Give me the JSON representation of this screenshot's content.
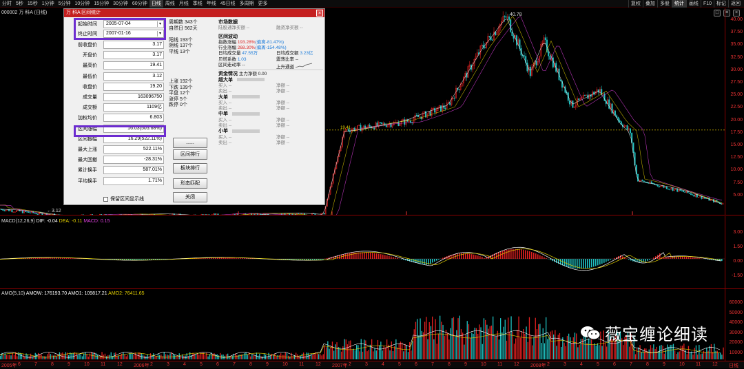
{
  "topbar": {
    "periods": [
      "分时",
      "5秒",
      "15秒",
      "1分钟",
      "5分钟",
      "10分钟",
      "15分钟",
      "30分钟",
      "60分钟",
      "日线",
      "周线",
      "月线",
      "季线",
      "年线",
      "45日线",
      "多周期",
      "更多"
    ],
    "active_period": "日线",
    "right_tools": [
      "复权",
      "叠加",
      "多股",
      "统计",
      "画线",
      "F10",
      "标记",
      "返回"
    ],
    "active_tool": "统计"
  },
  "stock": {
    "code": "000002",
    "name": "万 科A",
    "period": "(日线)"
  },
  "price_axis": [
    "40.00",
    "37.50",
    "35.00",
    "32.50",
    "30.00",
    "27.50",
    "25.00",
    "22.50",
    "20.00",
    "17.50",
    "15.00",
    "12.50",
    "10.00",
    "7.50",
    "5.00"
  ],
  "price_annotations": {
    "high": "40.78",
    "low": "3.12",
    "current": "19.41"
  },
  "macd": {
    "header": "MACD(12,26,9)",
    "dif": "DIF: -0.04",
    "dea": "DEA: -0.11",
    "macd": "MACD: 0.15",
    "axis": [
      "3.00",
      "1.50",
      "0.00",
      "-1.50"
    ]
  },
  "amo": {
    "header": "AMO(5,10)",
    "amow": "AMOW: 176193.70",
    "amo1": "AMO1: 109817.21",
    "amo2": "AMO2: 76411.65",
    "axis": [
      "60000",
      "50000",
      "40000",
      "30000",
      "20000",
      "10000"
    ]
  },
  "dialog": {
    "title": "万 科A  区间统计",
    "close": "×",
    "start_label": "起始时间",
    "start_value": "2005-07-04",
    "end_label": "终止时间",
    "end_value": "2007-01-16",
    "fields": [
      {
        "label": "前收盘价",
        "value": "3.17"
      },
      {
        "label": "开盘价",
        "value": "3.17"
      },
      {
        "label": "最高价",
        "value": "19.41"
      },
      {
        "label": "最低价",
        "value": "3.12"
      },
      {
        "label": "收盘价",
        "value": "19.20"
      },
      {
        "label": "成交量",
        "value": "163096750"
      },
      {
        "label": "成交额",
        "value": "1109亿"
      },
      {
        "label": "加权均价",
        "value": "6.803"
      },
      {
        "label": "区间涨幅",
        "value": "16.03(505.68%)"
      },
      {
        "label": "区间振幅",
        "value": "16.29(522.11%)"
      },
      {
        "label": "最大上涨",
        "value": "522.11%"
      },
      {
        "label": "最大回撤",
        "value": "-28.31%"
      },
      {
        "label": "累计换手",
        "value": "587.01%"
      },
      {
        "label": "平均换手",
        "value": "1.71%"
      }
    ],
    "mid_stats": [
      "周期数 343个",
      "自然日 562天",
      "",
      "阳线 193个",
      "阴线 137个",
      "平线 13个",
      "",
      "",
      "",
      "",
      "上涨 192个",
      "下跌 139个",
      "平盘 12个",
      "涨停 5个",
      "跌停 0个"
    ],
    "buttons": [
      "......",
      "区间排行",
      "板块排行",
      "形态匹配",
      "关闭"
    ],
    "checkbox_label": "保留区间显示线",
    "market": {
      "title": "市场数据",
      "north_in": "陆股通净买额 --",
      "margin_in": "融资净买额 --",
      "vol_title": "区间波动",
      "index_chg_lbl": "指数涨幅",
      "index_chg": "193.28%",
      "index_chg_note": "(偏离-81.47%)",
      "ind_chg_lbl": "行业涨幅",
      "ind_chg": "268.30%",
      "ind_chg_note": "(偏离-154.48%)",
      "daily_amt_lbl": "日均成交量",
      "daily_amt": "47.55万",
      "daily_turn_lbl": "日均成交额",
      "daily_turn": "3.23亿",
      "beta_lbl": "贝塔系数",
      "beta": "1.03",
      "amp_lbl": "震荡比率",
      "amp": "--",
      "trend_lbl": "区间走动率",
      "trend": "--",
      "channel": "上升通道",
      "fund_title": "资金情况",
      "fund_main": "主力净额 0.00",
      "groups": [
        "超大单",
        "大单",
        "中单",
        "小单"
      ],
      "buy": "买入 --",
      "sell": "卖出 --",
      "net": "净额 --"
    }
  },
  "time_axis": [
    "2005年",
    "6",
    "7",
    "8",
    "9",
    "10",
    "11",
    "12",
    "2006年",
    "2",
    "3",
    "4",
    "5",
    "6",
    "7",
    "8",
    "9",
    "10",
    "11",
    "12",
    "2007年",
    "2",
    "3",
    "4",
    "5",
    "6",
    "7",
    "8",
    "9",
    "10",
    "11",
    "12",
    "2008年",
    "2",
    "3",
    "4",
    "5",
    "6",
    "7",
    "8",
    "9",
    "10",
    "11",
    "12",
    "日线"
  ],
  "watermark": "薇宝缠论细读",
  "colors": {
    "up": "#e02020",
    "down": "#20c0c0",
    "ma_yellow": "#e6d200",
    "ma_white": "#ffffff",
    "highlight": "#6c2cd0",
    "title_red": "#c41f1f"
  }
}
